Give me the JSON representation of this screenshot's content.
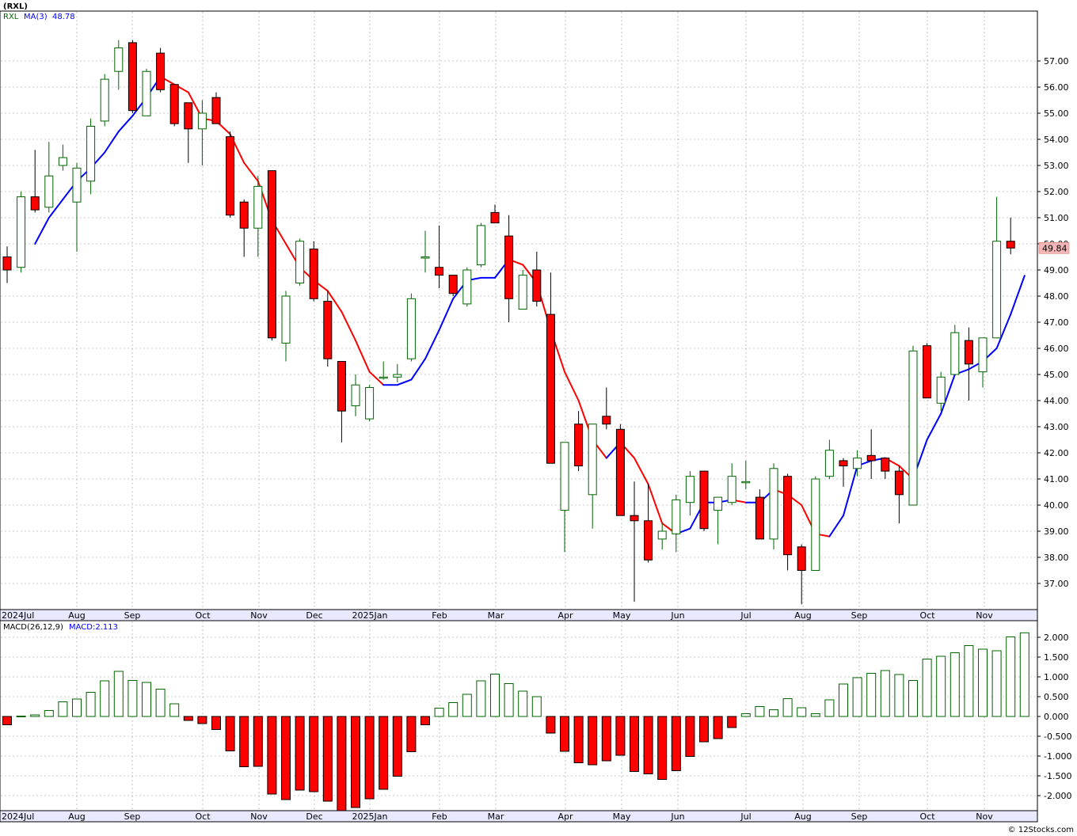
{
  "ticker_title": "(RXL)",
  "price_panel": {
    "legend_symbol": "RXL",
    "legend_ma": "MA(3)",
    "legend_ma_value": "48.78",
    "last_price_tag": "49.84",
    "y_ticks": [
      "37.00",
      "38.00",
      "39.00",
      "40.00",
      "41.00",
      "42.00",
      "43.00",
      "44.00",
      "45.00",
      "46.00",
      "47.00",
      "48.00",
      "49.00",
      "50.00",
      "51.00",
      "52.00",
      "53.00",
      "54.00",
      "55.00",
      "56.00",
      "57.00"
    ]
  },
  "macd_panel": {
    "legend_label": "MACD(26,12,9)",
    "legend_value": "MACD:2.113",
    "y_ticks": [
      "-2.000",
      "-1.500",
      "-1.000",
      "-0.500",
      "0.000",
      "0.500",
      "1.000",
      "1.500",
      "2.000"
    ]
  },
  "x_axis": {
    "month_labels": [
      "2024Jul",
      "Aug",
      "Sep",
      "Oct",
      "Nov",
      "Dec",
      "2025Jan",
      "Feb",
      "Mar",
      "Apr",
      "May",
      "Jun",
      "Jul",
      "Aug",
      "Sep",
      "Oct",
      "Nov"
    ]
  },
  "footer": "© 12Stocks.com",
  "colors": {
    "up": "#006400",
    "down": "#ff0000",
    "ma_up": "#0000ff",
    "ma_down": "#ff0000",
    "grid": "#999999"
  },
  "chart_data": [
    {
      "type": "candlestick",
      "title": "(RXL)",
      "interval": "weekly",
      "ylim": [
        36.2,
        58.1
      ],
      "grid": true,
      "series_ma": "MA(3)",
      "candles": [
        {
          "o": 49.5,
          "h": 49.9,
          "l": 48.5,
          "c": 49.0
        },
        {
          "o": 49.1,
          "h": 52.0,
          "l": 48.9,
          "c": 51.8
        },
        {
          "o": 51.8,
          "h": 53.6,
          "l": 51.2,
          "c": 51.3
        },
        {
          "o": 51.4,
          "h": 53.9,
          "l": 51.2,
          "c": 52.6
        },
        {
          "o": 53.0,
          "h": 53.8,
          "l": 52.8,
          "c": 53.3
        },
        {
          "o": 51.6,
          "h": 53.1,
          "l": 49.7,
          "c": 52.9
        },
        {
          "o": 52.4,
          "h": 54.8,
          "l": 51.9,
          "c": 54.5
        },
        {
          "o": 54.7,
          "h": 56.5,
          "l": 54.5,
          "c": 56.3
        },
        {
          "o": 56.6,
          "h": 57.8,
          "l": 55.9,
          "c": 57.5
        },
        {
          "o": 57.7,
          "h": 57.8,
          "l": 55.0,
          "c": 55.1
        },
        {
          "o": 54.9,
          "h": 56.7,
          "l": 54.9,
          "c": 56.6
        },
        {
          "o": 57.3,
          "h": 57.5,
          "l": 55.8,
          "c": 55.9
        },
        {
          "o": 56.1,
          "h": 56.1,
          "l": 54.5,
          "c": 54.6
        },
        {
          "o": 55.4,
          "h": 55.4,
          "l": 53.1,
          "c": 54.4
        },
        {
          "o": 54.4,
          "h": 55.5,
          "l": 53.0,
          "c": 55.0
        },
        {
          "o": 55.6,
          "h": 55.8,
          "l": 54.6,
          "c": 54.6
        },
        {
          "o": 54.1,
          "h": 54.3,
          "l": 51.0,
          "c": 51.1
        },
        {
          "o": 51.6,
          "h": 51.7,
          "l": 49.5,
          "c": 50.6
        },
        {
          "o": 50.6,
          "h": 52.6,
          "l": 49.5,
          "c": 52.2
        },
        {
          "o": 52.8,
          "h": 52.8,
          "l": 46.3,
          "c": 46.4
        },
        {
          "o": 46.2,
          "h": 48.2,
          "l": 45.5,
          "c": 48.0
        },
        {
          "o": 48.5,
          "h": 50.2,
          "l": 48.4,
          "c": 50.1
        },
        {
          "o": 49.8,
          "h": 50.1,
          "l": 47.8,
          "c": 47.9
        },
        {
          "o": 47.8,
          "h": 48.2,
          "l": 45.3,
          "c": 45.6
        },
        {
          "o": 45.5,
          "h": 45.5,
          "l": 42.4,
          "c": 43.6
        },
        {
          "o": 43.8,
          "h": 45.0,
          "l": 43.4,
          "c": 44.6
        },
        {
          "o": 43.3,
          "h": 44.6,
          "l": 43.2,
          "c": 44.5
        },
        {
          "o": 44.9,
          "h": 45.5,
          "l": 44.8,
          "c": 44.9
        },
        {
          "o": 44.9,
          "h": 45.4,
          "l": 44.7,
          "c": 45.0
        },
        {
          "o": 45.6,
          "h": 48.1,
          "l": 45.5,
          "c": 47.9
        },
        {
          "o": 49.5,
          "h": 50.5,
          "l": 48.9,
          "c": 49.5
        },
        {
          "o": 49.1,
          "h": 50.7,
          "l": 48.3,
          "c": 48.8
        },
        {
          "o": 48.8,
          "h": 48.8,
          "l": 48.0,
          "c": 48.1
        },
        {
          "o": 47.7,
          "h": 49.1,
          "l": 47.6,
          "c": 49.0
        },
        {
          "o": 49.2,
          "h": 50.8,
          "l": 49.1,
          "c": 50.7
        },
        {
          "o": 51.2,
          "h": 51.5,
          "l": 50.8,
          "c": 50.8
        },
        {
          "o": 50.3,
          "h": 51.1,
          "l": 47.0,
          "c": 47.9
        },
        {
          "o": 47.5,
          "h": 49.0,
          "l": 47.5,
          "c": 48.8
        },
        {
          "o": 49.0,
          "h": 49.7,
          "l": 47.6,
          "c": 47.8
        },
        {
          "o": 47.3,
          "h": 48.9,
          "l": 41.6,
          "c": 41.6
        },
        {
          "o": 39.8,
          "h": 42.4,
          "l": 38.2,
          "c": 42.4
        },
        {
          "o": 43.1,
          "h": 43.6,
          "l": 41.3,
          "c": 41.5
        },
        {
          "o": 40.4,
          "h": 43.1,
          "l": 39.1,
          "c": 43.1
        },
        {
          "o": 43.4,
          "h": 44.5,
          "l": 42.9,
          "c": 43.1
        },
        {
          "o": 42.9,
          "h": 43.1,
          "l": 39.6,
          "c": 39.6
        },
        {
          "o": 39.6,
          "h": 40.9,
          "l": 36.3,
          "c": 39.4
        },
        {
          "o": 39.4,
          "h": 40.8,
          "l": 37.8,
          "c": 37.9
        },
        {
          "o": 38.7,
          "h": 39.3,
          "l": 38.3,
          "c": 39.0
        },
        {
          "o": 38.9,
          "h": 40.4,
          "l": 38.2,
          "c": 40.2
        },
        {
          "o": 40.1,
          "h": 41.3,
          "l": 39.6,
          "c": 41.1
        },
        {
          "o": 41.3,
          "h": 41.3,
          "l": 39.0,
          "c": 39.1
        },
        {
          "o": 39.8,
          "h": 40.3,
          "l": 38.5,
          "c": 40.3
        },
        {
          "o": 40.1,
          "h": 41.6,
          "l": 40.0,
          "c": 41.1
        },
        {
          "o": 40.9,
          "h": 41.7,
          "l": 40.6,
          "c": 40.9
        },
        {
          "o": 40.3,
          "h": 40.6,
          "l": 38.7,
          "c": 38.7
        },
        {
          "o": 38.7,
          "h": 41.6,
          "l": 38.3,
          "c": 41.4
        },
        {
          "o": 41.1,
          "h": 41.2,
          "l": 37.5,
          "c": 38.1
        },
        {
          "o": 38.4,
          "h": 38.5,
          "l": 36.2,
          "c": 37.5
        },
        {
          "o": 37.5,
          "h": 41.1,
          "l": 37.5,
          "c": 41.0
        },
        {
          "o": 41.1,
          "h": 42.5,
          "l": 41.0,
          "c": 42.1
        },
        {
          "o": 41.7,
          "h": 41.8,
          "l": 40.7,
          "c": 41.5
        },
        {
          "o": 41.4,
          "h": 42.1,
          "l": 41.1,
          "c": 41.8
        },
        {
          "o": 41.9,
          "h": 42.9,
          "l": 41.0,
          "c": 41.7
        },
        {
          "o": 41.8,
          "h": 41.8,
          "l": 41.0,
          "c": 41.3
        },
        {
          "o": 41.3,
          "h": 41.5,
          "l": 39.3,
          "c": 40.4
        },
        {
          "o": 40.0,
          "h": 46.1,
          "l": 40.0,
          "c": 45.9
        },
        {
          "o": 46.1,
          "h": 46.2,
          "l": 44.1,
          "c": 44.1
        },
        {
          "o": 43.9,
          "h": 45.1,
          "l": 43.6,
          "c": 44.9
        },
        {
          "o": 45.0,
          "h": 46.9,
          "l": 45.0,
          "c": 46.6
        },
        {
          "o": 46.3,
          "h": 46.8,
          "l": 44.0,
          "c": 45.4
        },
        {
          "o": 45.1,
          "h": 46.4,
          "l": 44.5,
          "c": 46.4
        },
        {
          "o": 46.4,
          "h": 51.8,
          "l": 46.4,
          "c": 50.1
        },
        {
          "o": 50.1,
          "h": 51.0,
          "l": 49.6,
          "c": 49.84
        }
      ],
      "ma": [
        null,
        null,
        50.0,
        51.0,
        51.7,
        52.4,
        52.9,
        53.5,
        54.3,
        54.9,
        55.6,
        56.4,
        56.1,
        55.8,
        54.8,
        54.7,
        54.2,
        53.1,
        52.4,
        50.9,
        50.0,
        49.1,
        48.6,
        48.2,
        47.4,
        46.3,
        45.1,
        44.6,
        44.6,
        44.8,
        45.6,
        46.7,
        47.9,
        48.6,
        48.7,
        48.7,
        49.4,
        49.2,
        48.5,
        46.7,
        45.1,
        44.0,
        42.5,
        41.8,
        42.4,
        41.8,
        40.8,
        39.3,
        38.9,
        39.1,
        40.1,
        40.1,
        40.2,
        40.1,
        40.1,
        40.6,
        40.4,
        40.0,
        38.9,
        38.8,
        39.6,
        41.5,
        41.7,
        41.8,
        41.5,
        41.0,
        42.5,
        43.5,
        45.0,
        45.2,
        45.5,
        46.0,
        47.3,
        48.78
      ]
    },
    {
      "type": "bar",
      "title": "MACD(26,12,9)",
      "ylim": [
        -2.4,
        2.2
      ],
      "values": [
        -0.21,
        0.01,
        0.04,
        0.15,
        0.37,
        0.44,
        0.61,
        0.9,
        1.14,
        0.91,
        0.86,
        0.69,
        0.32,
        -0.1,
        -0.18,
        -0.33,
        -0.87,
        -1.27,
        -1.26,
        -1.96,
        -2.1,
        -1.86,
        -1.9,
        -2.14,
        -2.38,
        -2.3,
        -2.08,
        -1.84,
        -1.51,
        -0.89,
        -0.21,
        0.21,
        0.35,
        0.56,
        0.9,
        1.07,
        0.83,
        0.64,
        0.5,
        -0.42,
        -0.88,
        -1.17,
        -1.22,
        -1.12,
        -0.98,
        -1.39,
        -1.45,
        -1.59,
        -1.37,
        -1.01,
        -0.64,
        -0.56,
        -0.28,
        0.07,
        0.25,
        0.17,
        0.45,
        0.22,
        0.07,
        0.42,
        0.82,
        0.98,
        1.09,
        1.16,
        1.06,
        0.91,
        1.45,
        1.52,
        1.61,
        1.79,
        1.7,
        1.66,
        2.01,
        2.113
      ]
    }
  ]
}
